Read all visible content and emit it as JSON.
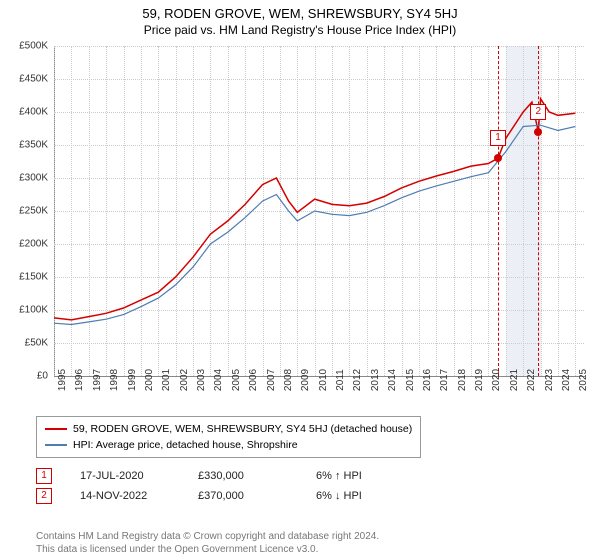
{
  "title": "59, RODEN GROVE, WEM, SHREWSBURY, SY4 5HJ",
  "subtitle": "Price paid vs. HM Land Registry's House Price Index (HPI)",
  "chart": {
    "type": "line",
    "xlim": [
      1995,
      2025.5
    ],
    "ylim": [
      0,
      500000
    ],
    "ytick_step": 50000,
    "xtick_step": 1,
    "x_years": [
      1995,
      1996,
      1997,
      1998,
      1999,
      2000,
      2001,
      2002,
      2003,
      2004,
      2005,
      2006,
      2007,
      2008,
      2009,
      2010,
      2011,
      2012,
      2013,
      2014,
      2015,
      2016,
      2017,
      2018,
      2019,
      2020,
      2021,
      2022,
      2023,
      2024,
      2025
    ],
    "grid_color": "#cccccc",
    "background_color": "#ffffff",
    "axis_color": "#888888",
    "highlight_band": {
      "from": 2021.0,
      "to": 2023.0,
      "color": "rgba(200,210,230,0.35)"
    },
    "series": [
      {
        "name": "59, RODEN GROVE, WEM, SHREWSBURY, SY4 5HJ (detached house)",
        "color": "#d40000",
        "line_width": 1.5,
        "points": [
          [
            1995.0,
            88000
          ],
          [
            1996.0,
            85000
          ],
          [
            1997.0,
            90000
          ],
          [
            1998.0,
            95000
          ],
          [
            1999.0,
            103000
          ],
          [
            2000.0,
            115000
          ],
          [
            2001.0,
            127000
          ],
          [
            2002.0,
            150000
          ],
          [
            2003.0,
            180000
          ],
          [
            2004.0,
            215000
          ],
          [
            2005.0,
            235000
          ],
          [
            2006.0,
            260000
          ],
          [
            2007.0,
            290000
          ],
          [
            2007.8,
            300000
          ],
          [
            2008.5,
            265000
          ],
          [
            2009.0,
            248000
          ],
          [
            2010.0,
            268000
          ],
          [
            2011.0,
            260000
          ],
          [
            2012.0,
            258000
          ],
          [
            2013.0,
            262000
          ],
          [
            2014.0,
            272000
          ],
          [
            2015.0,
            285000
          ],
          [
            2016.0,
            295000
          ],
          [
            2017.0,
            303000
          ],
          [
            2018.0,
            310000
          ],
          [
            2019.0,
            318000
          ],
          [
            2020.0,
            322000
          ],
          [
            2020.55,
            330000
          ],
          [
            2021.0,
            360000
          ],
          [
            2022.0,
            400000
          ],
          [
            2022.5,
            415000
          ],
          [
            2022.87,
            370000
          ],
          [
            2023.0,
            420000
          ],
          [
            2023.5,
            400000
          ],
          [
            2024.0,
            395000
          ],
          [
            2025.0,
            398000
          ]
        ]
      },
      {
        "name": "HPI: Average price, detached house, Shropshire",
        "color": "#4d7db3",
        "line_width": 1.2,
        "points": [
          [
            1995.0,
            80000
          ],
          [
            1996.0,
            78000
          ],
          [
            1997.0,
            82000
          ],
          [
            1998.0,
            86000
          ],
          [
            1999.0,
            93000
          ],
          [
            2000.0,
            105000
          ],
          [
            2001.0,
            118000
          ],
          [
            2002.0,
            138000
          ],
          [
            2003.0,
            165000
          ],
          [
            2004.0,
            200000
          ],
          [
            2005.0,
            218000
          ],
          [
            2006.0,
            240000
          ],
          [
            2007.0,
            265000
          ],
          [
            2007.8,
            275000
          ],
          [
            2008.5,
            250000
          ],
          [
            2009.0,
            235000
          ],
          [
            2010.0,
            250000
          ],
          [
            2011.0,
            245000
          ],
          [
            2012.0,
            243000
          ],
          [
            2013.0,
            248000
          ],
          [
            2014.0,
            258000
          ],
          [
            2015.0,
            270000
          ],
          [
            2016.0,
            280000
          ],
          [
            2017.0,
            288000
          ],
          [
            2018.0,
            295000
          ],
          [
            2019.0,
            302000
          ],
          [
            2020.0,
            308000
          ],
          [
            2021.0,
            340000
          ],
          [
            2022.0,
            378000
          ],
          [
            2023.0,
            380000
          ],
          [
            2024.0,
            372000
          ],
          [
            2025.0,
            378000
          ]
        ]
      }
    ],
    "sale_markers": [
      {
        "label": "1",
        "x": 2020.55,
        "y": 330000,
        "color": "#d40000"
      },
      {
        "label": "2",
        "x": 2022.87,
        "y": 370000,
        "color": "#d40000"
      }
    ]
  },
  "legend": {
    "series": [
      {
        "label": "59, RODEN GROVE, WEM, SHREWSBURY, SY4 5HJ (detached house)",
        "color": "#d40000"
      },
      {
        "label": "HPI: Average price, detached house, Shropshire",
        "color": "#4d7db3"
      }
    ]
  },
  "sales": [
    {
      "marker": "1",
      "date": "17-JUL-2020",
      "price": "£330,000",
      "delta": "6% ↑ HPI",
      "color": "#d40000"
    },
    {
      "marker": "2",
      "date": "14-NOV-2022",
      "price": "£370,000",
      "delta": "6% ↓ HPI",
      "color": "#d40000"
    }
  ],
  "attribution": {
    "line1": "Contains HM Land Registry data © Crown copyright and database right 2024.",
    "line2": "This data is licensed under the Open Government Licence v3.0."
  },
  "currency_prefix": "£",
  "yticklabels": [
    "£0",
    "£50K",
    "£100K",
    "£150K",
    "£200K",
    "£250K",
    "£300K",
    "£350K",
    "£400K",
    "£450K",
    "£500K"
  ]
}
